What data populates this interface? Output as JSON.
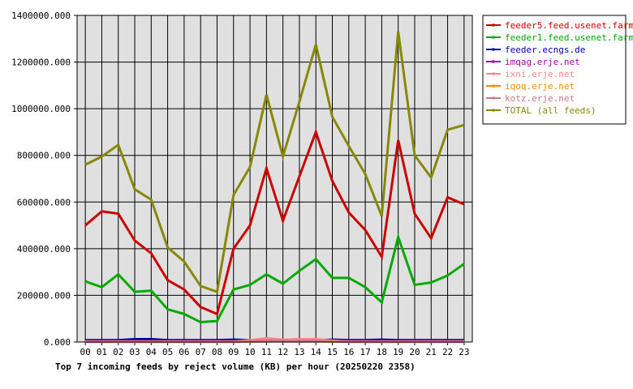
{
  "chart_data": {
    "type": "line",
    "title": "Top 7 incoming feeds by reject volume (KB) per hour (20250220 2358)",
    "xlabel": "",
    "ylabel": "",
    "ylim": [
      0,
      1400000
    ],
    "grid": true,
    "legend_position": "right",
    "y_ticks": [
      "0.000",
      "200000.000",
      "400000.000",
      "600000.000",
      "800000.000",
      "1000000.000",
      "1200000.000",
      "1400000.000"
    ],
    "y_tick_values": [
      0,
      200000,
      400000,
      600000,
      800000,
      1000000,
      1200000,
      1400000
    ],
    "categories": [
      "00",
      "01",
      "02",
      "03",
      "04",
      "05",
      "06",
      "07",
      "08",
      "09",
      "10",
      "11",
      "12",
      "13",
      "14",
      "15",
      "16",
      "17",
      "18",
      "19",
      "20",
      "21",
      "22",
      "23"
    ],
    "series": [
      {
        "name": "feeder5.feed.usenet.farm",
        "color": "#cc0000",
        "values": [
          500000,
          560000,
          550000,
          435000,
          380000,
          265000,
          225000,
          150000,
          120000,
          400000,
          500000,
          745000,
          520000,
          710000,
          900000,
          690000,
          555000,
          480000,
          365000,
          865000,
          550000,
          445000,
          620000,
          590000
        ]
      },
      {
        "name": "feeder1.feed.usenet.farm",
        "color": "#00aa00",
        "values": [
          260000,
          235000,
          290000,
          215000,
          220000,
          140000,
          120000,
          85000,
          90000,
          225000,
          245000,
          290000,
          250000,
          305000,
          355000,
          275000,
          275000,
          235000,
          170000,
          450000,
          245000,
          255000,
          285000,
          335000
        ]
      },
      {
        "name": "feeder.ecngs.de",
        "color": "#0000aa",
        "values": [
          8000,
          8000,
          8000,
          12000,
          12000,
          8000,
          8000,
          8000,
          8000,
          10000,
          8000,
          8000,
          8000,
          8000,
          8000,
          10000,
          8000,
          8000,
          10000,
          8000,
          8000,
          8000,
          8000,
          8000
        ]
      },
      {
        "name": "imqag.erje.net",
        "color": "#aa00aa",
        "values": [
          3000,
          3000,
          3000,
          3000,
          3000,
          3000,
          3000,
          3000,
          3000,
          3000,
          3000,
          3000,
          3000,
          3000,
          3000,
          3000,
          3000,
          3000,
          3000,
          3000,
          3000,
          3000,
          3000,
          3000
        ]
      },
      {
        "name": "ixni.erje.net",
        "color": "#ff8888",
        "values": [
          2000,
          2000,
          2000,
          2000,
          2000,
          2000,
          2000,
          2000,
          2000,
          2000,
          8000,
          16000,
          10000,
          12000,
          12000,
          6000,
          2000,
          2000,
          2000,
          2000,
          2000,
          2000,
          2000,
          2000
        ]
      },
      {
        "name": "iqoq.erje.net",
        "color": "#ff8800",
        "values": [
          1000,
          1000,
          1000,
          1000,
          1000,
          1000,
          1000,
          1000,
          1000,
          1000,
          2000,
          3000,
          3000,
          3000,
          3000,
          2000,
          1000,
          1000,
          1000,
          1000,
          1000,
          1000,
          1000,
          1000
        ]
      },
      {
        "name": "kotz.erje.net",
        "color": "#cc7788",
        "values": [
          1000,
          1000,
          1000,
          1000,
          1000,
          1000,
          1000,
          1000,
          1000,
          1000,
          4000,
          6000,
          5000,
          5000,
          5000,
          3000,
          1000,
          1000,
          1000,
          1000,
          1000,
          1000,
          1000,
          1000
        ]
      },
      {
        "name": "TOTAL (all feeds)",
        "color": "#888800",
        "values": [
          760000,
          795000,
          845000,
          655000,
          610000,
          405000,
          345000,
          240000,
          215000,
          630000,
          750000,
          1060000,
          795000,
          1030000,
          1275000,
          965000,
          840000,
          720000,
          540000,
          1330000,
          800000,
          705000,
          910000,
          930000
        ]
      }
    ]
  }
}
